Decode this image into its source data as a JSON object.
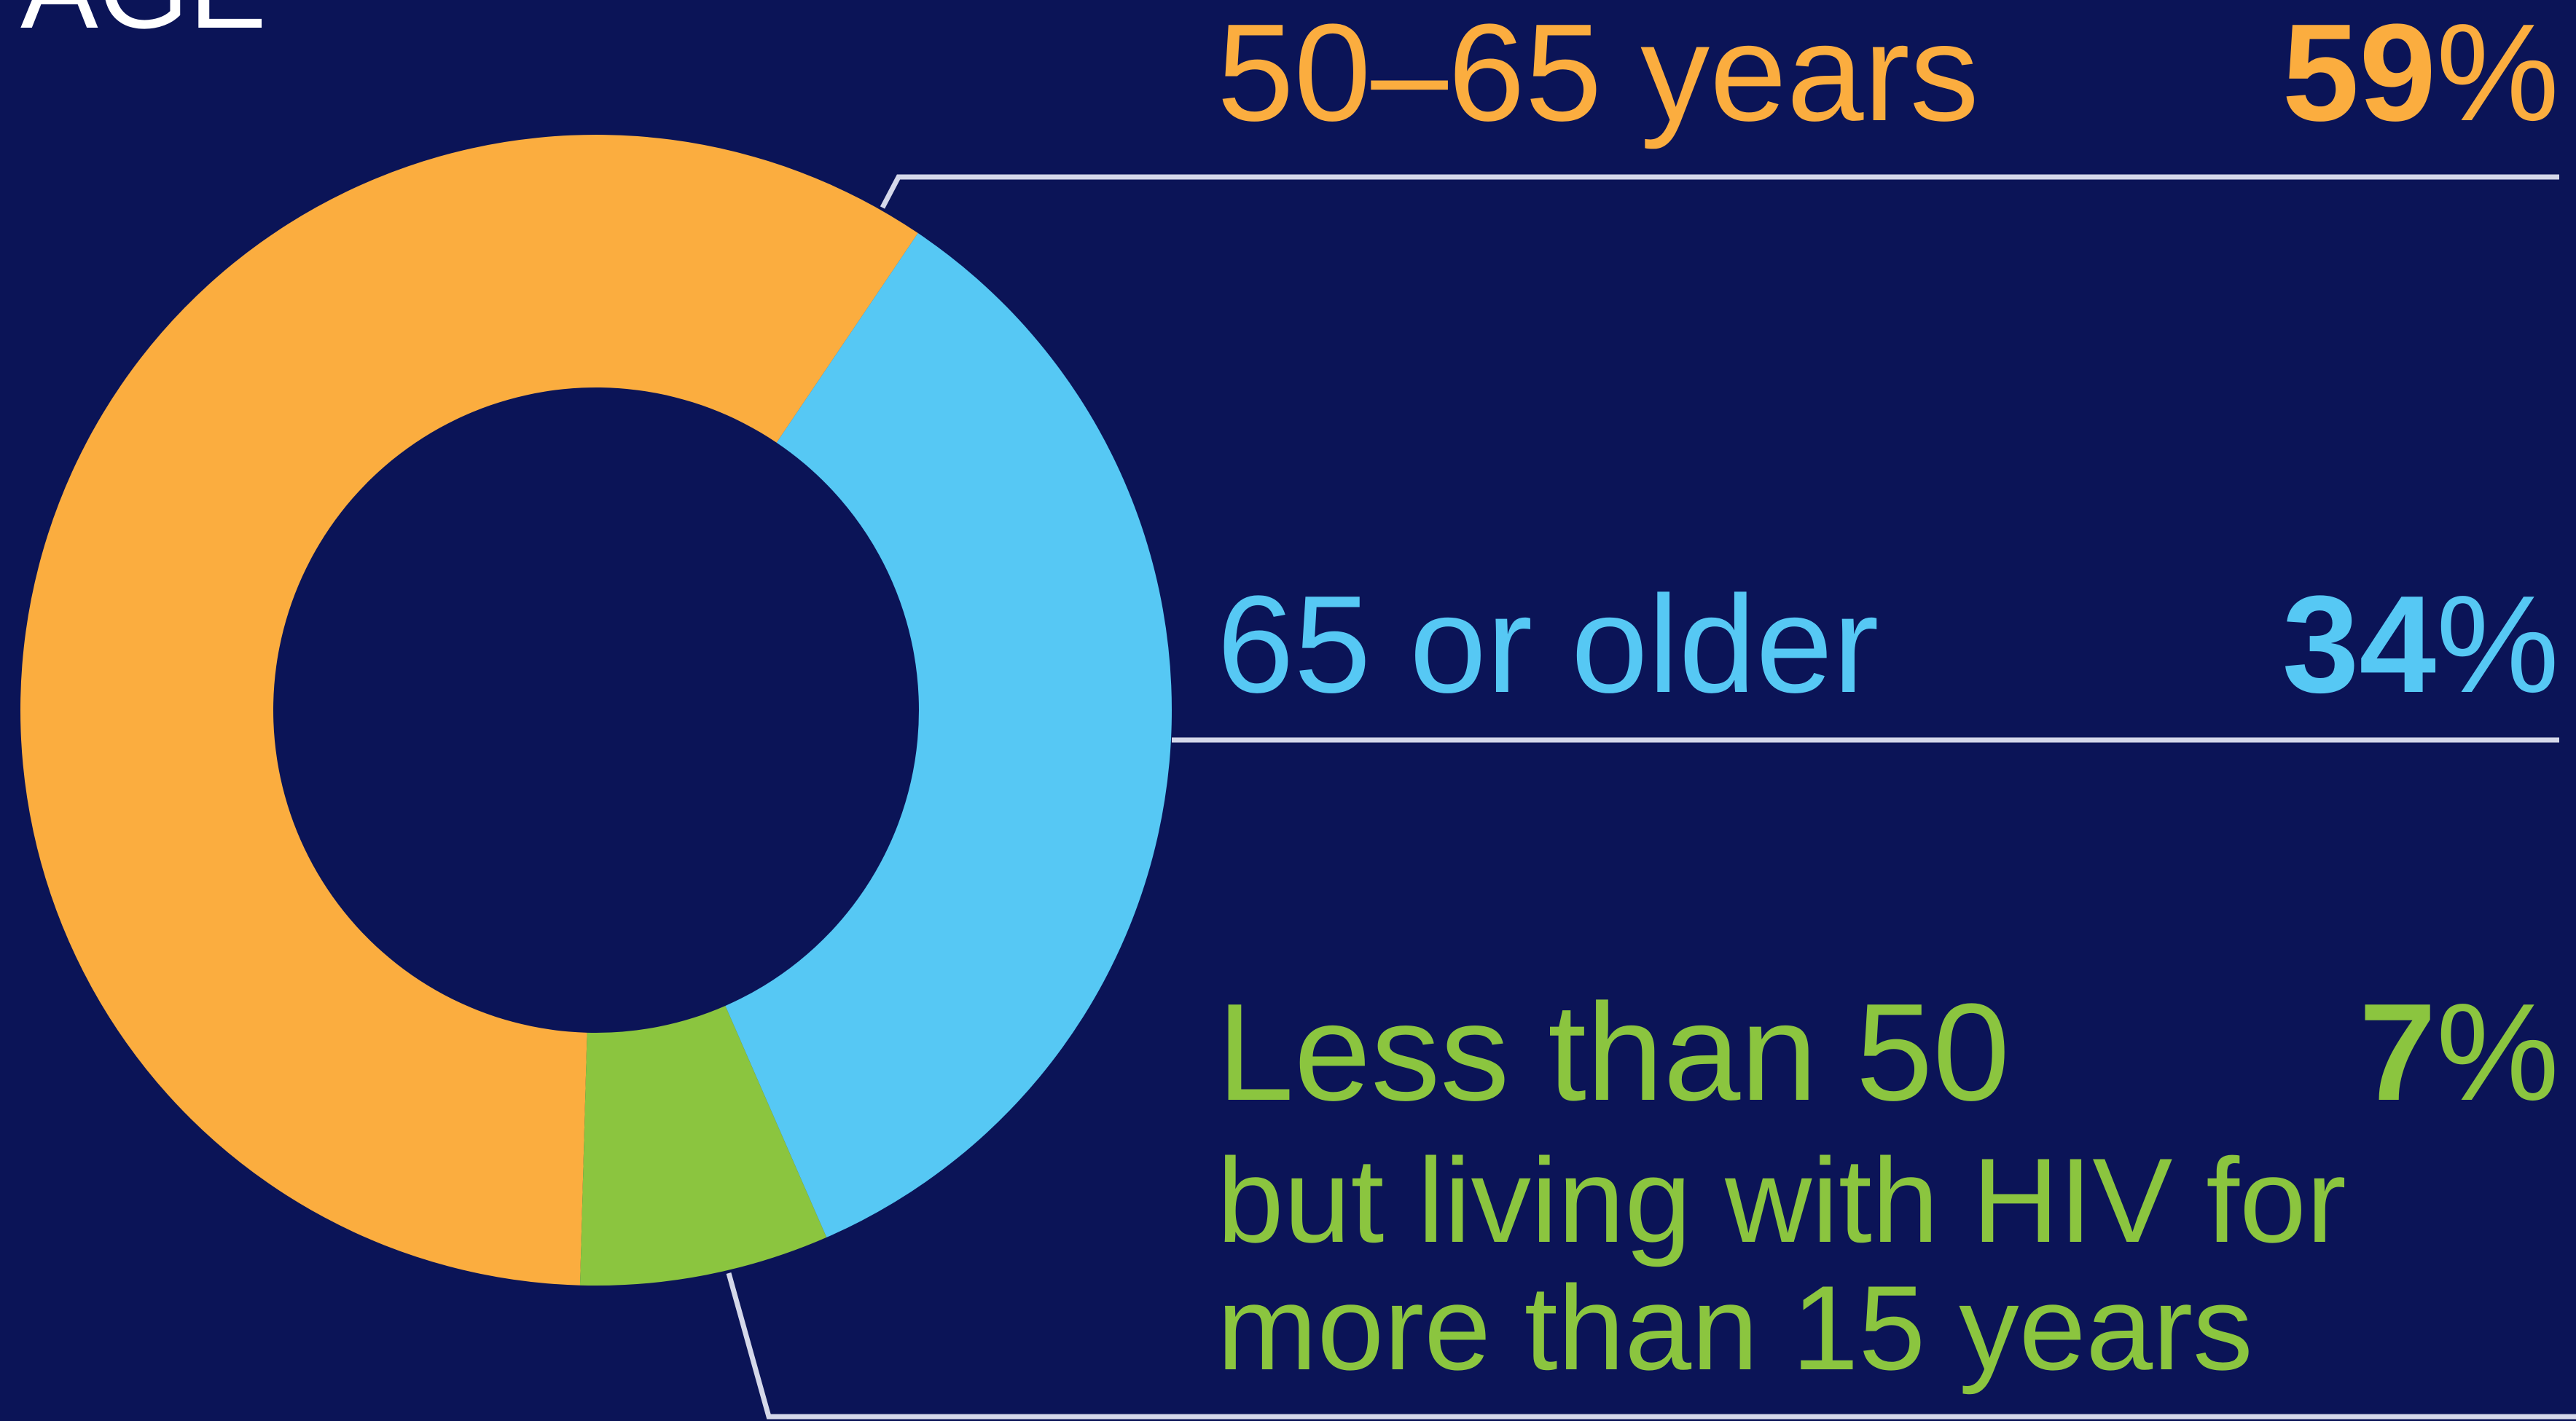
{
  "chart_data": {
    "type": "pie",
    "title": "AGE",
    "percent_symbol": "%",
    "slices": [
      {
        "label": "50–65 years",
        "sublabel": [],
        "value": 59,
        "color": "#fbad3f"
      },
      {
        "label": "65 or older",
        "sublabel": [],
        "value": 34,
        "color": "#56c8f4"
      },
      {
        "label": "Less than 50",
        "sublabel": [
          "but living with HIV for",
          "more than 15 years"
        ],
        "value": 7,
        "color": "#8bc53f"
      }
    ]
  },
  "colors": {
    "background": "#0b1457",
    "title": "#ffffff",
    "leader_line": "#d5d8ea"
  }
}
